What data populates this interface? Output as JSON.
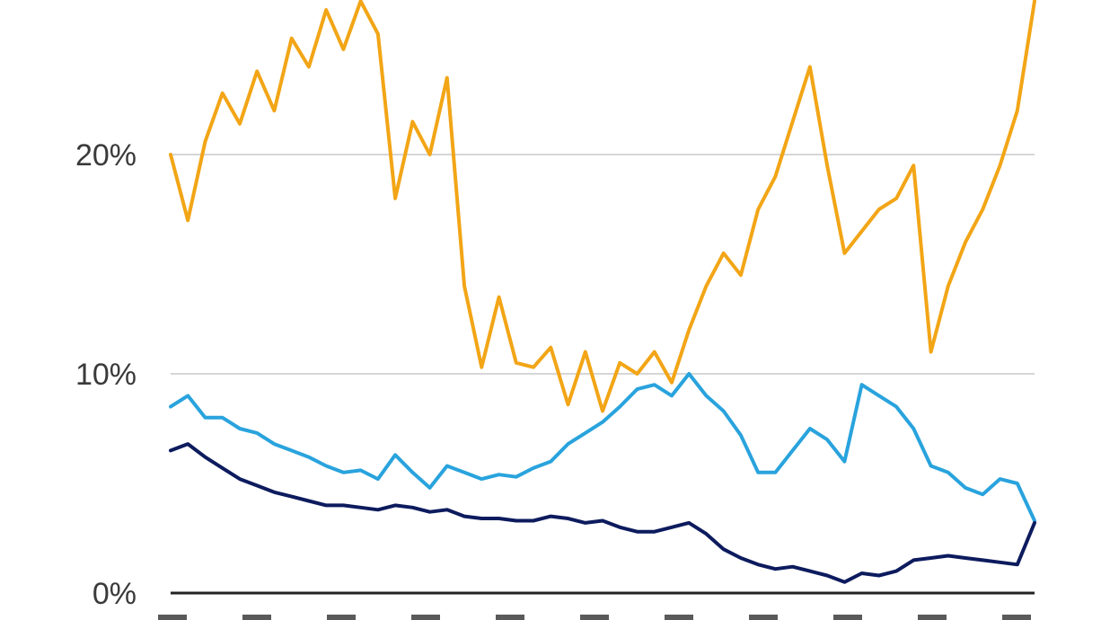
{
  "chart_data": {
    "type": "line",
    "title": "",
    "xlabel": "",
    "ylabel": "",
    "ylim": [
      0,
      26
    ],
    "y_ticks": [
      {
        "value": 0,
        "label": "0%"
      },
      {
        "value": 10,
        "label": "10%"
      },
      {
        "value": 20,
        "label": "20%"
      }
    ],
    "grid": true,
    "legend": "none",
    "x_tick_count": 11,
    "series": [
      {
        "color": "#f2a516",
        "x": [
          0,
          2,
          4,
          6,
          8,
          10,
          12,
          14,
          16,
          18,
          20,
          22,
          24,
          26,
          28,
          30,
          32,
          34,
          36,
          38,
          40,
          42,
          44,
          46,
          48,
          50,
          52,
          54,
          56,
          58,
          60,
          62,
          64,
          66,
          68,
          70,
          72,
          74,
          76,
          78,
          80,
          82,
          84,
          86,
          88,
          90,
          92,
          94,
          96,
          98,
          100
        ],
        "y": [
          20.0,
          17.0,
          20.6,
          22.8,
          21.4,
          23.8,
          22.0,
          25.3,
          24.0,
          26.6,
          24.8,
          27.0,
          25.5,
          18.0,
          21.5,
          20.0,
          23.5,
          14.0,
          10.3,
          13.5,
          10.5,
          10.3,
          11.2,
          8.6,
          11.0,
          8.3,
          10.5,
          10.0,
          11.0,
          9.6,
          12.0,
          14.0,
          15.5,
          14.5,
          17.5,
          19.0,
          21.5,
          24.0,
          19.5,
          15.5,
          16.5,
          17.5,
          18.0,
          19.5,
          11.0,
          14.0,
          16.0,
          17.5,
          19.5,
          22.0,
          27.0
        ]
      },
      {
        "color": "#29a3dd",
        "x": [
          0,
          2,
          4,
          6,
          8,
          10,
          12,
          14,
          16,
          18,
          20,
          22,
          24,
          26,
          28,
          30,
          32,
          34,
          36,
          38,
          40,
          42,
          44,
          46,
          48,
          50,
          52,
          54,
          56,
          58,
          60,
          62,
          64,
          66,
          68,
          70,
          72,
          74,
          76,
          78,
          80,
          82,
          84,
          86,
          88,
          90,
          92,
          94,
          96,
          98,
          100
        ],
        "y": [
          8.5,
          9.0,
          8.0,
          8.0,
          7.5,
          7.3,
          6.8,
          6.5,
          6.2,
          5.8,
          5.5,
          5.6,
          5.2,
          6.3,
          5.5,
          4.8,
          5.8,
          5.5,
          5.2,
          5.4,
          5.3,
          5.7,
          6.0,
          6.8,
          7.3,
          7.8,
          8.5,
          9.3,
          9.5,
          9.0,
          10.0,
          9.0,
          8.3,
          7.2,
          5.5,
          5.5,
          6.5,
          7.5,
          7.0,
          6.0,
          9.5,
          9.0,
          8.5,
          7.5,
          5.8,
          5.5,
          4.8,
          4.5,
          5.2,
          5.0,
          3.3
        ]
      },
      {
        "color": "#0d1b5e",
        "x": [
          0,
          2,
          4,
          6,
          8,
          10,
          12,
          14,
          16,
          18,
          20,
          22,
          24,
          26,
          28,
          30,
          32,
          34,
          36,
          38,
          40,
          42,
          44,
          46,
          48,
          50,
          52,
          54,
          56,
          58,
          60,
          62,
          64,
          66,
          68,
          70,
          72,
          74,
          76,
          78,
          80,
          82,
          84,
          86,
          88,
          90,
          92,
          94,
          96,
          98,
          100
        ],
        "y": [
          6.5,
          6.8,
          6.2,
          5.7,
          5.2,
          4.9,
          4.6,
          4.4,
          4.2,
          4.0,
          4.0,
          3.9,
          3.8,
          4.0,
          3.9,
          3.7,
          3.8,
          3.5,
          3.4,
          3.4,
          3.3,
          3.3,
          3.5,
          3.4,
          3.2,
          3.3,
          3.0,
          2.8,
          2.8,
          3.0,
          3.2,
          2.7,
          2.0,
          1.6,
          1.3,
          1.1,
          1.2,
          1.0,
          0.8,
          0.5,
          0.9,
          0.8,
          1.0,
          1.5,
          1.6,
          1.7,
          1.6,
          1.5,
          1.4,
          1.3,
          3.2
        ]
      }
    ]
  }
}
